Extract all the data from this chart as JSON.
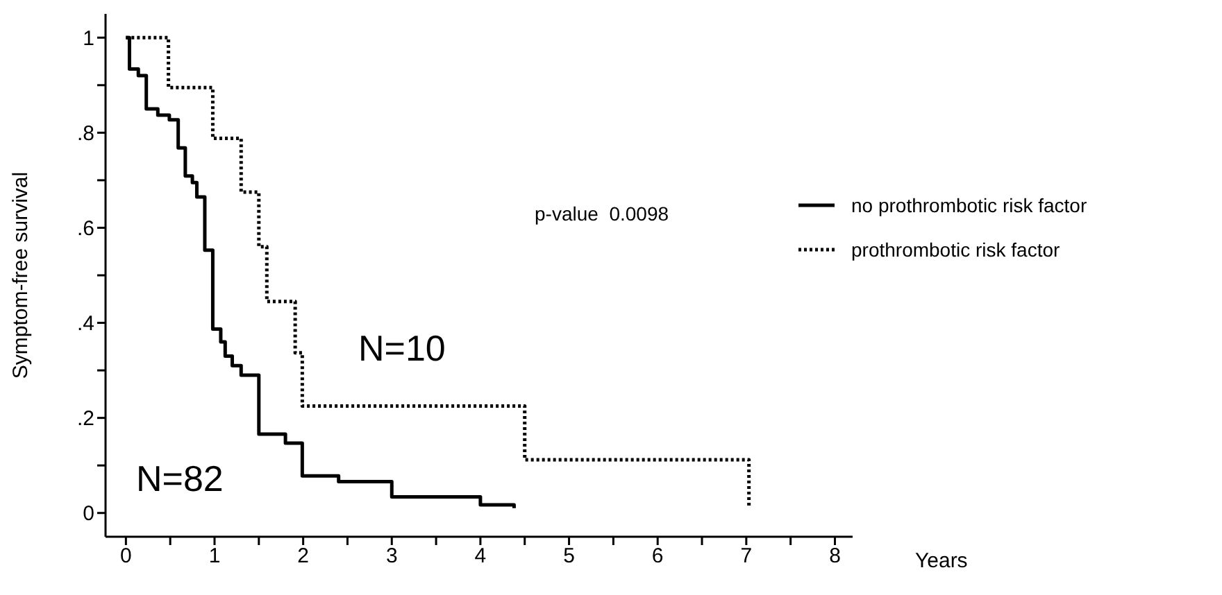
{
  "chart_data": {
    "type": "step",
    "ylabel": "Symptom-free survival",
    "xlabel": "Years",
    "xlim": [
      -0.23,
      8.2
    ],
    "ylim": [
      -0.05,
      1.05
    ],
    "xticks": [
      0,
      {
        "value": 0.5,
        "label": null
      },
      1,
      {
        "value": 1.5,
        "label": null
      },
      2,
      {
        "value": 2.5,
        "label": null
      },
      3,
      {
        "value": 3.5,
        "label": null
      },
      4,
      {
        "value": 4.5,
        "label": null
      },
      5,
      {
        "value": 5.5,
        "label": null
      },
      6,
      {
        "value": 6.5,
        "label": null
      },
      7,
      {
        "value": 7.5,
        "label": null
      },
      8
    ],
    "yticks": [
      0,
      {
        "value": 0.1,
        "label": null
      },
      {
        "value": 0.2,
        "label": ".2"
      },
      {
        "value": 0.3,
        "label": null
      },
      {
        "value": 0.4,
        "label": ".4"
      },
      {
        "value": 0.5,
        "label": null
      },
      {
        "value": 0.6,
        "label": ".6"
      },
      {
        "value": 0.7,
        "label": null
      },
      {
        "value": 0.8,
        "label": ".8"
      },
      {
        "value": 0.9,
        "label": null
      },
      1
    ],
    "legend": "right",
    "marker": "none",
    "series": [
      {
        "name": "no prothrombotic risk factor",
        "color": "#000000",
        "line_style": "solid",
        "x": [
          0,
          0.04,
          0.14,
          0.23,
          0.36,
          0.49,
          0.59,
          0.67,
          0.75,
          0.8,
          0.89,
          0.98,
          1.07,
          1.12,
          1.2,
          1.3,
          1.5,
          1.8,
          1.99,
          2.4,
          3.0,
          4.0,
          4.38
        ],
        "values": [
          1,
          0.934,
          0.92,
          0.85,
          0.837,
          0.827,
          0.768,
          0.709,
          0.695,
          0.665,
          0.553,
          0.387,
          0.36,
          0.33,
          0.31,
          0.29,
          0.166,
          0.147,
          0.078,
          0.066,
          0.034,
          0.017,
          0.01
        ]
      },
      {
        "name": "prothrombotic risk factor",
        "color": "#000000",
        "line_style": "dotted",
        "x": [
          0,
          0.48,
          0.98,
          1.3,
          1.5,
          1.59,
          1.91,
          1.99,
          4.5,
          7.03
        ],
        "values": [
          1,
          0.895,
          0.788,
          0.675,
          0.56,
          0.445,
          0.337,
          0.225,
          0.112,
          0.01
        ]
      }
    ],
    "annotations": [
      "p-value  0.0098",
      "N=10",
      "N=82"
    ]
  }
}
